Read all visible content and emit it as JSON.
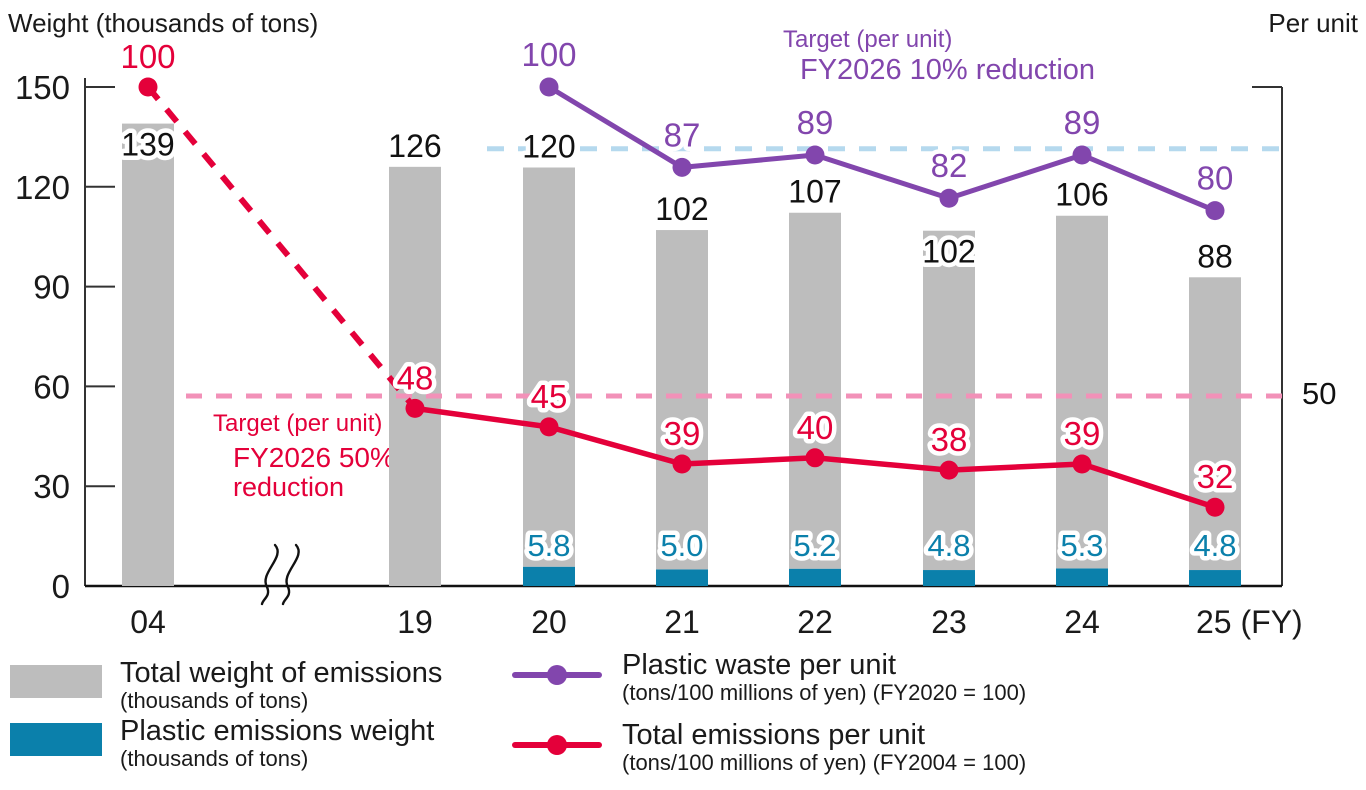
{
  "header": {
    "left_axis_title": "Weight (thousands of tons)",
    "right_axis_title": "Per unit"
  },
  "annotations": {
    "purple_target": {
      "line1": "Target (per unit)",
      "line2": "FY2026 10% reduction"
    },
    "red_target": {
      "line1": "Target (per unit)",
      "line2": "FY2026 50%",
      "line3": "reduction"
    },
    "right_axis_target_value": "50"
  },
  "chart_data": {
    "type": "combo-stacked-bar-and-line",
    "categories": [
      "04",
      "19",
      "20",
      "21",
      "22",
      "23",
      "24",
      "25"
    ],
    "x_axis_suffix": "(FY)",
    "axis_break_between": [
      "04",
      "19"
    ],
    "y_left": {
      "title": "Weight (thousands of tons)",
      "ticks": [
        0,
        30,
        60,
        90,
        120,
        150
      ],
      "ylim": [
        0,
        150
      ]
    },
    "y_right": {
      "title": "Per unit",
      "top_tick_value": 100,
      "target_tick_label": "50"
    },
    "series": [
      {
        "name": "Total weight of emissions (thousands of tons)",
        "type": "bar-stack-top",
        "color": "#bdbdbd",
        "values": [
          139,
          126,
          120,
          102,
          107,
          102,
          106,
          88
        ],
        "labels": [
          "139",
          "126",
          "120",
          "102",
          "107",
          "102",
          "106",
          "88"
        ]
      },
      {
        "name": "Plastic emissions weight (thousands of tons)",
        "type": "bar-stack-bottom",
        "color": "#0b80ab",
        "values": [
          null,
          null,
          5.8,
          5.0,
          5.2,
          4.8,
          5.3,
          4.8
        ],
        "labels": [
          null,
          null,
          "5.8",
          "5.0",
          "5.2",
          "4.8",
          "5.3",
          "4.8"
        ]
      },
      {
        "name": "Plastic waste per unit (tons/100 millions of yen) (FY2020 = 100)",
        "type": "line",
        "axis": "right",
        "color": "#8246ad",
        "values": [
          null,
          null,
          100,
          87,
          89,
          82,
          89,
          80
        ],
        "labels": [
          null,
          null,
          "100",
          "87",
          "89",
          "82",
          "89",
          "80"
        ]
      },
      {
        "name": "Total emissions per unit (tons/100 millions of yen) (FY2004 = 100)",
        "type": "line",
        "axis": "right",
        "color": "#e4003a",
        "dashed_between_first_two_points": true,
        "values": [
          100,
          48,
          45,
          39,
          40,
          38,
          39,
          32
        ],
        "labels": [
          "100",
          "48",
          "45",
          "39",
          "40",
          "38",
          "39",
          "32"
        ]
      }
    ],
    "target_lines": [
      {
        "label": "Target (per unit) FY2026 10% reduction",
        "axis": "right",
        "value": 90,
        "color": "#b5d9ee"
      },
      {
        "label": "Target (per unit) FY2026 50% reduction",
        "axis": "right",
        "value": 50,
        "color": "#f291b8"
      }
    ]
  },
  "legend": {
    "items": [
      {
        "label": "Total weight of emissions",
        "sublabel": "(thousands of tons)",
        "swatch": "gray-bar",
        "color": "#bdbdbd"
      },
      {
        "label": "Plastic emissions weight",
        "sublabel": "(thousands of tons)",
        "swatch": "blue-bar",
        "color": "#0b80ab"
      },
      {
        "label": "Plastic waste per unit",
        "sublabel": "(tons/100 millions of yen) (FY2020 = 100)",
        "swatch": "purple-line",
        "color": "#8246ad"
      },
      {
        "label": "Total emissions per unit",
        "sublabel": "(tons/100 millions of yen) (FY2004 = 100)",
        "swatch": "red-line",
        "color": "#e4003a"
      }
    ]
  }
}
